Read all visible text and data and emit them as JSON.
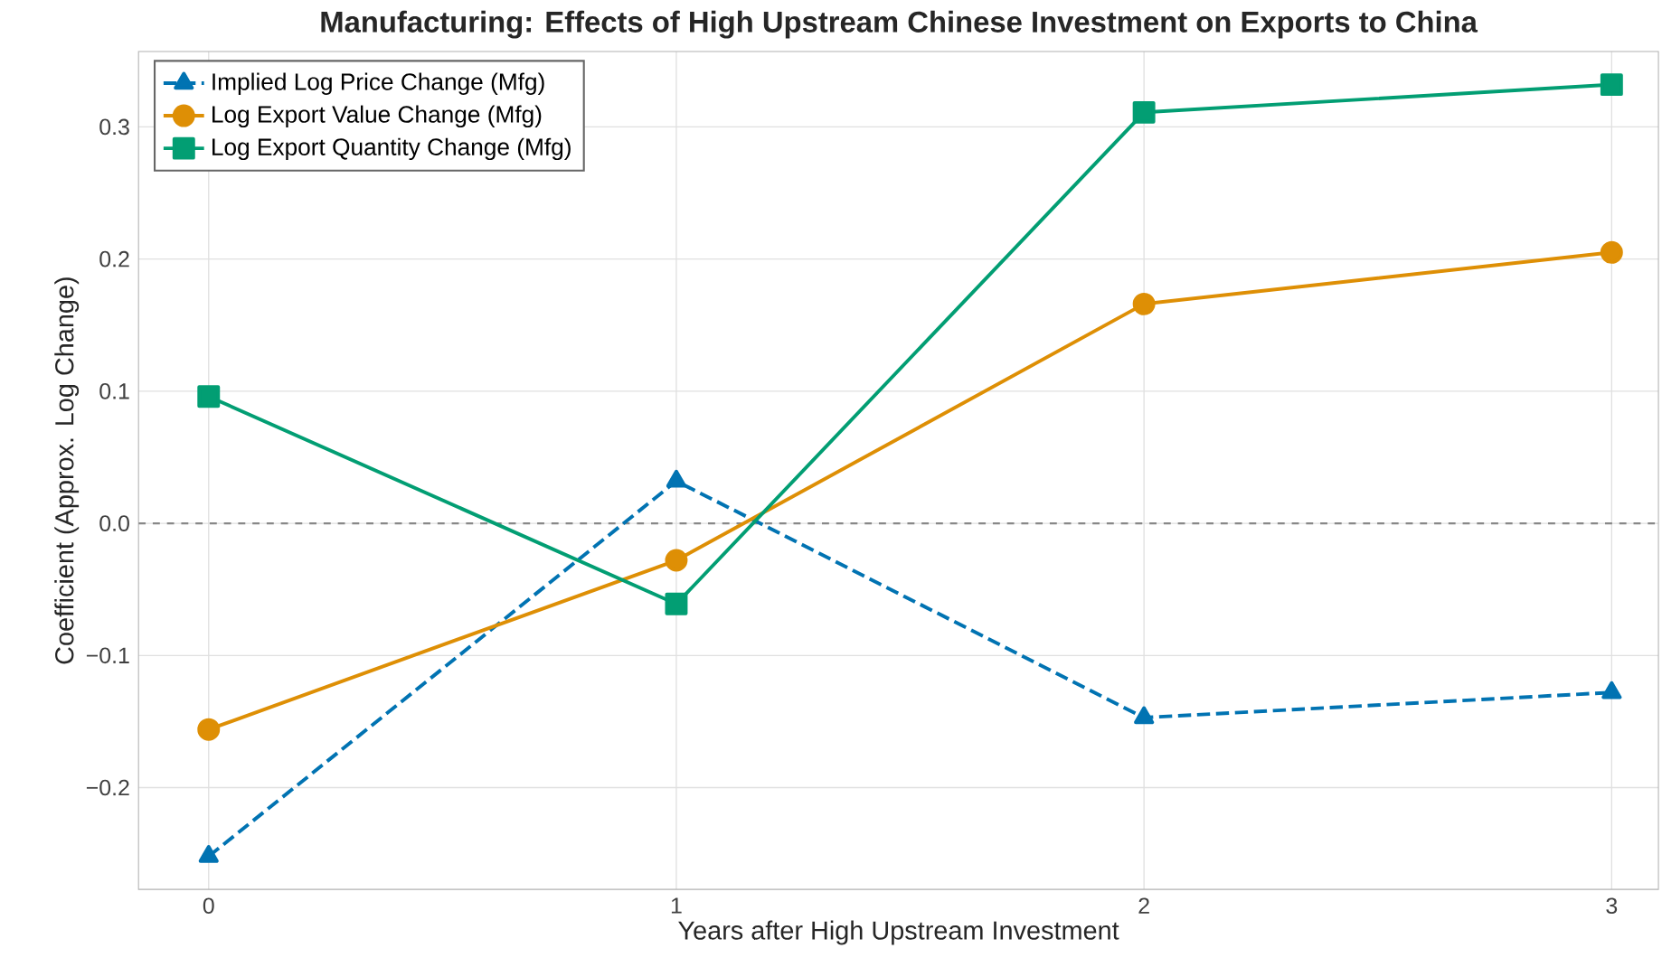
{
  "chart_data": {
    "type": "line",
    "title": "Manufacturing: Effects of High Upstream Chinese Investment on Exports to China",
    "xlabel": "Years after High Upstream Investment",
    "ylabel": "Coefficient (Approx. Log Change)",
    "x": [
      0,
      1,
      2,
      3
    ],
    "series": [
      {
        "name": "Implied Log Price Change (Mfg)",
        "color": "#0173b2",
        "marker": "triangle",
        "line_style": "dashed",
        "values": [
          -0.252,
          0.032,
          -0.147,
          -0.128
        ]
      },
      {
        "name": "Log Export Value Change (Mfg)",
        "color": "#de8f05",
        "marker": "circle",
        "line_style": "solid",
        "values": [
          -0.156,
          -0.028,
          0.166,
          0.205
        ]
      },
      {
        "name": "Log Export Quantity Change (Mfg)",
        "color": "#029e73",
        "marker": "square",
        "line_style": "solid",
        "values": [
          0.096,
          -0.061,
          0.311,
          0.332
        ]
      }
    ],
    "xlim": [
      -0.15,
      3.1
    ],
    "ylim": [
      -0.277,
      0.357
    ],
    "xticks": [
      0,
      1,
      2,
      3
    ],
    "yticks": [
      {
        "value": -0.2,
        "label": "−0.2"
      },
      {
        "value": -0.1,
        "label": "−0.1"
      },
      {
        "value": 0,
        "label": "0.0"
      },
      {
        "value": 0.1,
        "label": "0.1"
      },
      {
        "value": 0.2,
        "label": "0.2"
      },
      {
        "value": 0.3,
        "label": "0.3"
      }
    ],
    "ref_lines": [
      {
        "axis": "y",
        "value": 0,
        "color": "#888888",
        "line_style": "dashed"
      }
    ],
    "grid": true,
    "legend": "top left"
  }
}
